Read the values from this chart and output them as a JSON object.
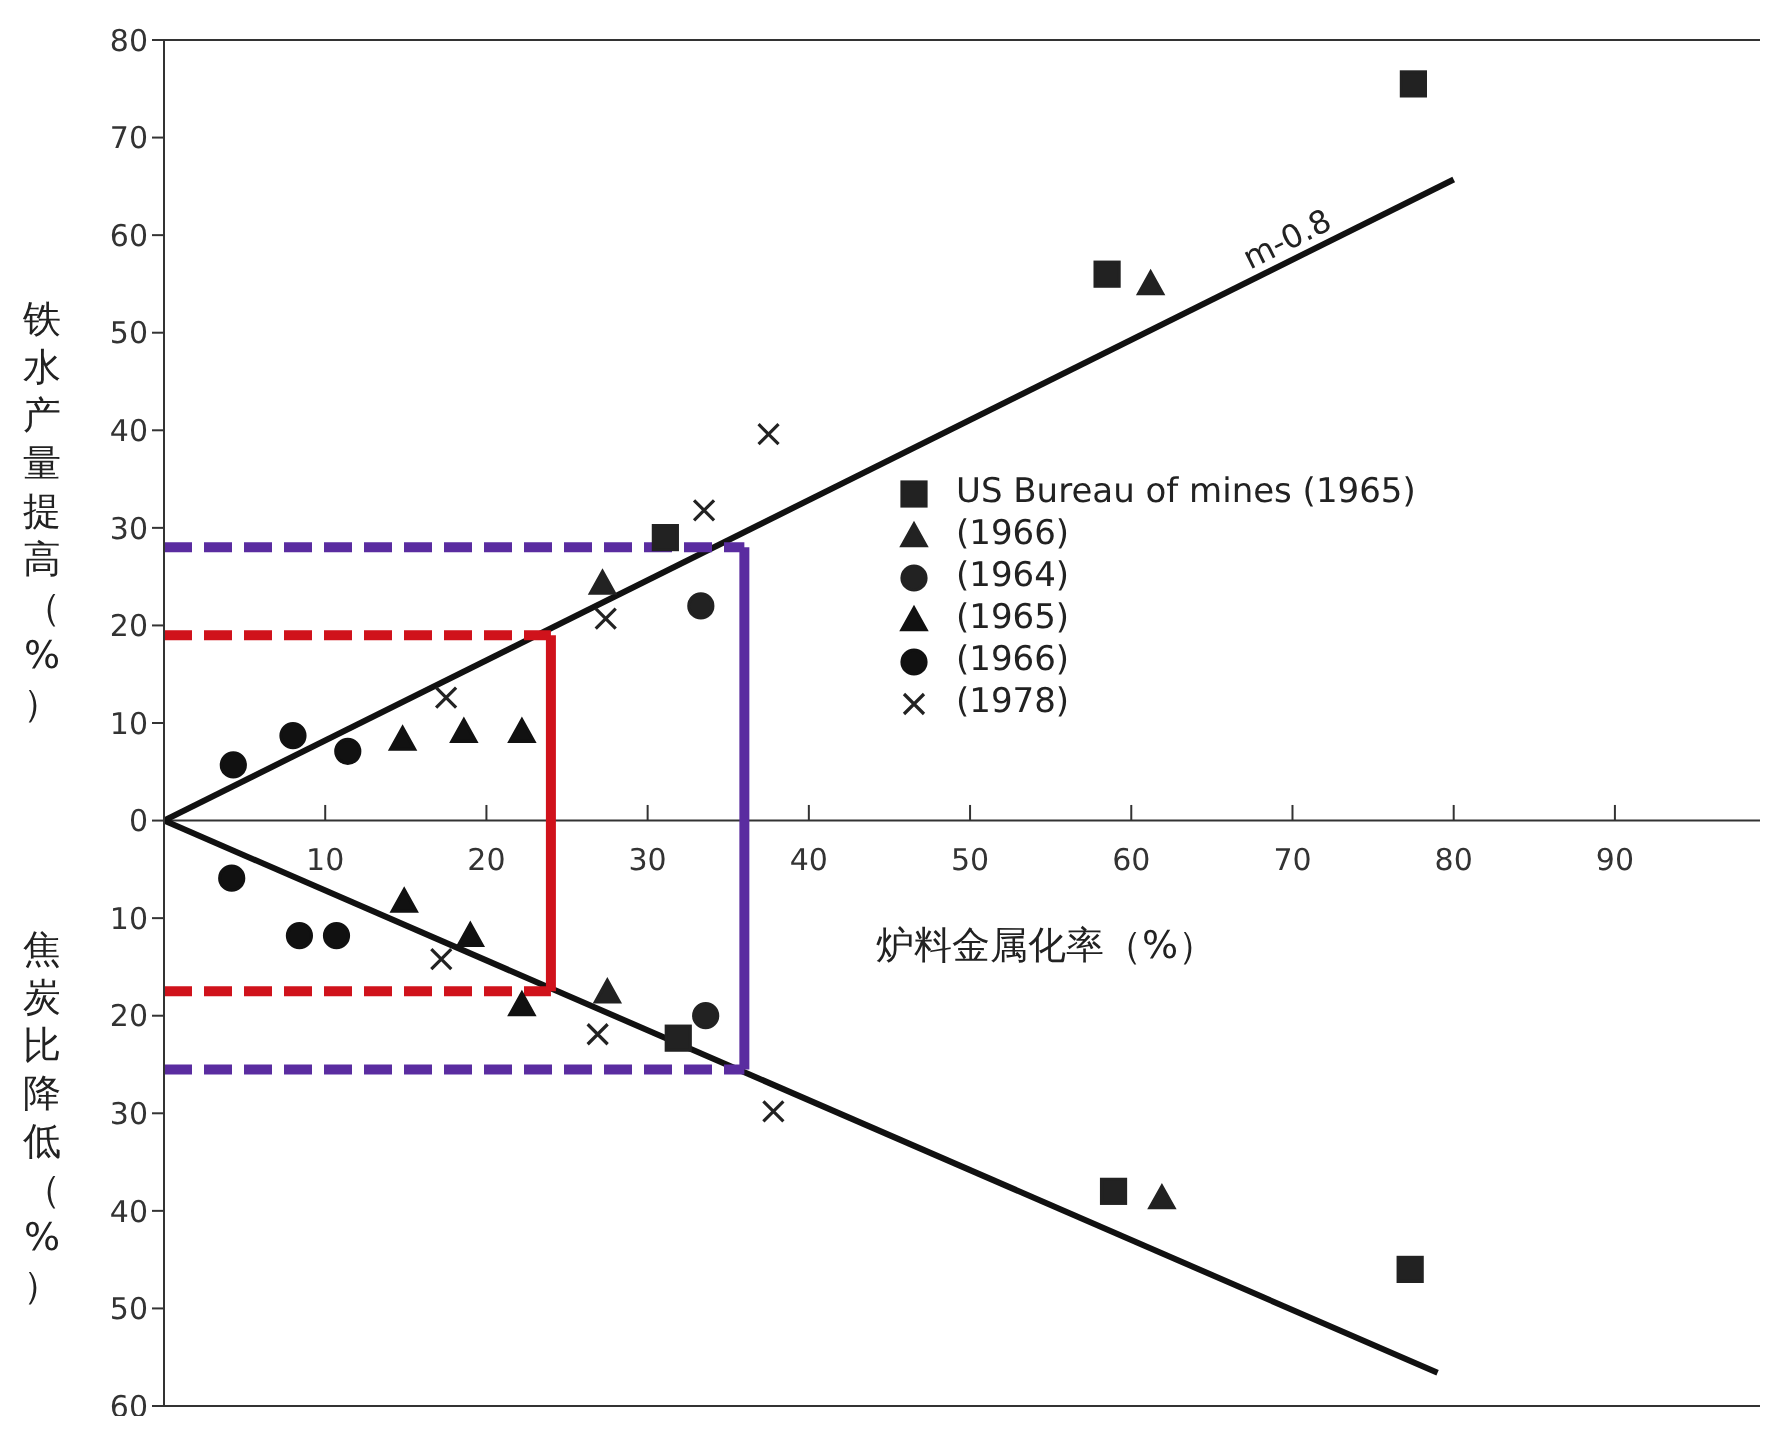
{
  "chart_data": {
    "type": "scatter",
    "xlabel": "炉料金属化率（%）",
    "ylabel": "铁水产量提高（%）",
    "xlim": [
      0,
      99
    ],
    "xticks": [
      10,
      20,
      30,
      40,
      50,
      60,
      70,
      80,
      90
    ],
    "ylim": [
      -60,
      80
    ],
    "yticks": [
      {
        "value": -60,
        "label": "60"
      },
      {
        "value": -50,
        "label": "50"
      },
      {
        "value": -40,
        "label": "40"
      },
      {
        "value": -30,
        "label": "30"
      },
      {
        "value": -20,
        "label": "20"
      },
      {
        "value": -10,
        "label": "10"
      },
      0,
      10,
      20,
      30,
      40,
      50,
      60,
      70,
      80
    ],
    "grid": false,
    "legend": "right",
    "annotations": [
      "m-0.8",
      "焦炭比降低（%）"
    ],
    "series": [
      {
        "name": "US Bureau of mines (1965)",
        "color": "#222222",
        "marker": "square",
        "x": [
          31.1,
          58.5,
          77.5,
          31.9,
          58.9,
          77.3
        ],
        "values": [
          29,
          56,
          75.5,
          -22.3,
          -38,
          -46
        ]
      },
      {
        "name": "(1966)",
        "color": "#222222",
        "marker": "triangle",
        "x": [
          27.2,
          61.2,
          27.5,
          61.9
        ],
        "values": [
          24.3,
          55,
          -17.6,
          -38.7
        ]
      },
      {
        "name": "(1964)",
        "color": "#222222",
        "marker": "circle",
        "x": [
          33.3,
          33.6
        ],
        "values": [
          22,
          -20
        ]
      },
      {
        "name": "(1965)",
        "color": "#111111",
        "marker": "triangle",
        "x": [
          14.8,
          18.6,
          22.2,
          14.9,
          19,
          22.2
        ],
        "values": [
          8.3,
          9.1,
          9.1,
          -8.3,
          -11.8,
          -18.9
        ]
      },
      {
        "name": "(1966)",
        "color": "#111111",
        "marker": "circle",
        "x": [
          4.3,
          8,
          11.4,
          4.2,
          8.4,
          10.7
        ],
        "values": [
          5.7,
          8.7,
          7.1,
          -5.9,
          -11.8,
          -11.8
        ]
      },
      {
        "name": "(1978)",
        "color": "#222222",
        "marker": "cross",
        "x": [
          37.5,
          33.5,
          27.4,
          17.5,
          17.2,
          26.9,
          37.8
        ],
        "values": [
          39.6,
          31.8,
          20.7,
          12.6,
          -14.2,
          -21.9,
          -29.8
        ]
      },
      {
        "type": "line",
        "color": "#111111",
        "line_style": "solid",
        "x": [
          0,
          80
        ],
        "values": [
          0,
          65.7
        ]
      },
      {
        "type": "line",
        "color": "#111111",
        "line_style": "solid",
        "x": [
          0,
          79
        ],
        "values": [
          0,
          -56.6
        ]
      },
      {
        "type": "line",
        "color": "#d0121b",
        "line_style": "solid",
        "x": [
          24,
          24
        ],
        "values": [
          19,
          -17.5
        ]
      },
      {
        "type": "line",
        "color": "#d0121b",
        "line_style": "dashed",
        "x": [
          0,
          24
        ],
        "values": [
          19,
          19
        ]
      },
      {
        "type": "line",
        "color": "#d0121b",
        "line_style": "dashed",
        "x": [
          0,
          24
        ],
        "values": [
          -17.5,
          -17.5
        ]
      },
      {
        "type": "line",
        "color": "#5a2ca0",
        "line_style": "solid",
        "x": [
          36,
          36
        ],
        "values": [
          28,
          -25.5
        ]
      },
      {
        "type": "line",
        "color": "#5a2ca0",
        "line_style": "dashed",
        "x": [
          0,
          36
        ],
        "values": [
          28,
          28
        ]
      },
      {
        "type": "line",
        "color": "#5a2ca0",
        "line_style": "dashed",
        "x": [
          0,
          36
        ],
        "values": [
          -25.5,
          -25.5
        ]
      }
    ]
  }
}
